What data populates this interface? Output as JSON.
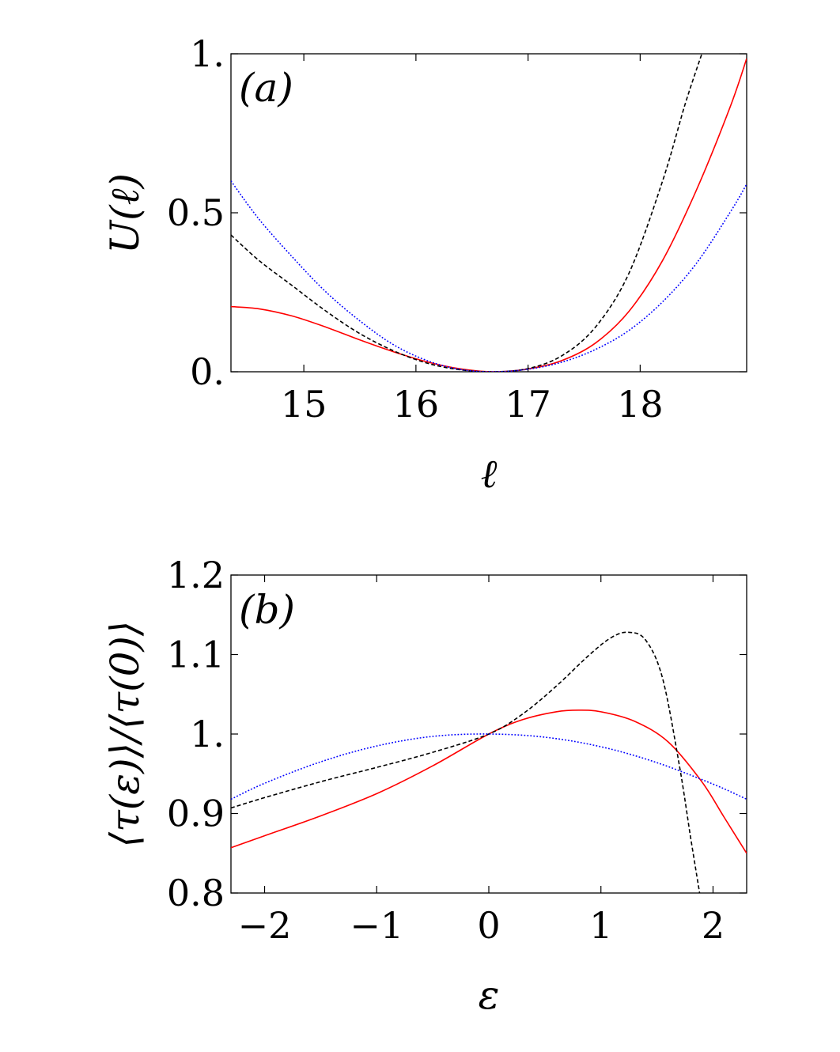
{
  "chart_data": [
    {
      "type": "line",
      "panel_label": "(a)",
      "xlabel": "ℓ",
      "ylabel": "U(ℓ)",
      "xlim": [
        14.35,
        18.95
      ],
      "ylim": [
        0,
        1
      ],
      "xticks": [
        15,
        16,
        17,
        18
      ],
      "xtick_labels": [
        "15",
        "16",
        "17",
        "18"
      ],
      "yticks": [
        0,
        0.5,
        1
      ],
      "ytick_labels": [
        "0.",
        "0.5",
        "1."
      ],
      "series": [
        {
          "color": "#ff0000",
          "style": "solid",
          "x": [
            14.35,
            14.6,
            14.9,
            15.2,
            15.5,
            15.8,
            16.1,
            16.4,
            16.7,
            17.0,
            17.3,
            17.6,
            17.9,
            18.2,
            18.5,
            18.8,
            18.95
          ],
          "y": [
            0.205,
            0.198,
            0.175,
            0.14,
            0.1,
            0.063,
            0.031,
            0.009,
            0.0,
            0.009,
            0.035,
            0.09,
            0.19,
            0.35,
            0.57,
            0.83,
            0.985
          ]
        },
        {
          "color": "#000000",
          "style": "dashed",
          "x": [
            14.35,
            14.6,
            14.9,
            15.2,
            15.5,
            15.8,
            16.1,
            16.4,
            16.7,
            17.0,
            17.3,
            17.6,
            17.9,
            18.2,
            18.4,
            18.55
          ],
          "y": [
            0.43,
            0.35,
            0.27,
            0.19,
            0.12,
            0.066,
            0.027,
            0.006,
            0.0,
            0.01,
            0.05,
            0.14,
            0.31,
            0.6,
            0.84,
            1.0
          ]
        },
        {
          "color": "#0000ff",
          "style": "dotted",
          "x": [
            14.35,
            14.6,
            14.9,
            15.2,
            15.5,
            15.8,
            16.1,
            16.4,
            16.7,
            17.0,
            17.3,
            17.6,
            17.9,
            18.2,
            18.5,
            18.8,
            18.95
          ],
          "y": [
            0.6,
            0.48,
            0.36,
            0.25,
            0.16,
            0.085,
            0.035,
            0.007,
            0.0,
            0.008,
            0.03,
            0.07,
            0.13,
            0.22,
            0.34,
            0.5,
            0.59
          ]
        }
      ]
    },
    {
      "type": "line",
      "panel_label": "(b)",
      "xlabel": "ε",
      "ylabel": "⟨τ(ε)⟩/⟨τ(0)⟩",
      "xlim": [
        -2.3,
        2.3
      ],
      "ylim": [
        0.8,
        1.2
      ],
      "xticks": [
        -2,
        -1,
        0,
        1,
        2
      ],
      "xtick_labels": [
        "−2",
        "−1",
        "0",
        "1",
        "2"
      ],
      "yticks": [
        0.8,
        0.9,
        1.0,
        1.1,
        1.2
      ],
      "ytick_labels": [
        "0.8",
        "0.9",
        "1.",
        "1.1",
        "1.2"
      ],
      "series": [
        {
          "color": "#ff0000",
          "style": "solid",
          "x": [
            -2.3,
            -2.0,
            -1.5,
            -1.0,
            -0.5,
            0.0,
            0.3,
            0.6,
            0.8,
            1.0,
            1.3,
            1.6,
            1.9,
            2.1,
            2.3
          ],
          "y": [
            0.857,
            0.872,
            0.897,
            0.925,
            0.96,
            1.0,
            1.018,
            1.028,
            1.03,
            1.028,
            1.016,
            0.99,
            0.94,
            0.895,
            0.85
          ]
        },
        {
          "color": "#000000",
          "style": "dashed",
          "x": [
            -2.3,
            -2.0,
            -1.5,
            -1.0,
            -0.5,
            0.0,
            0.3,
            0.6,
            0.9,
            1.1,
            1.25,
            1.4,
            1.55,
            1.7,
            1.8,
            1.88
          ],
          "y": [
            0.907,
            0.92,
            0.94,
            0.958,
            0.977,
            1.0,
            1.025,
            1.06,
            1.1,
            1.122,
            1.128,
            1.118,
            1.07,
            0.96,
            0.87,
            0.8
          ]
        },
        {
          "color": "#0000ff",
          "style": "dotted",
          "x": [
            -2.3,
            -2.0,
            -1.5,
            -1.0,
            -0.5,
            0.0,
            0.5,
            1.0,
            1.5,
            2.0,
            2.3
          ],
          "y": [
            0.918,
            0.938,
            0.965,
            0.985,
            0.997,
            1.0,
            0.996,
            0.984,
            0.964,
            0.937,
            0.918
          ]
        }
      ]
    }
  ]
}
